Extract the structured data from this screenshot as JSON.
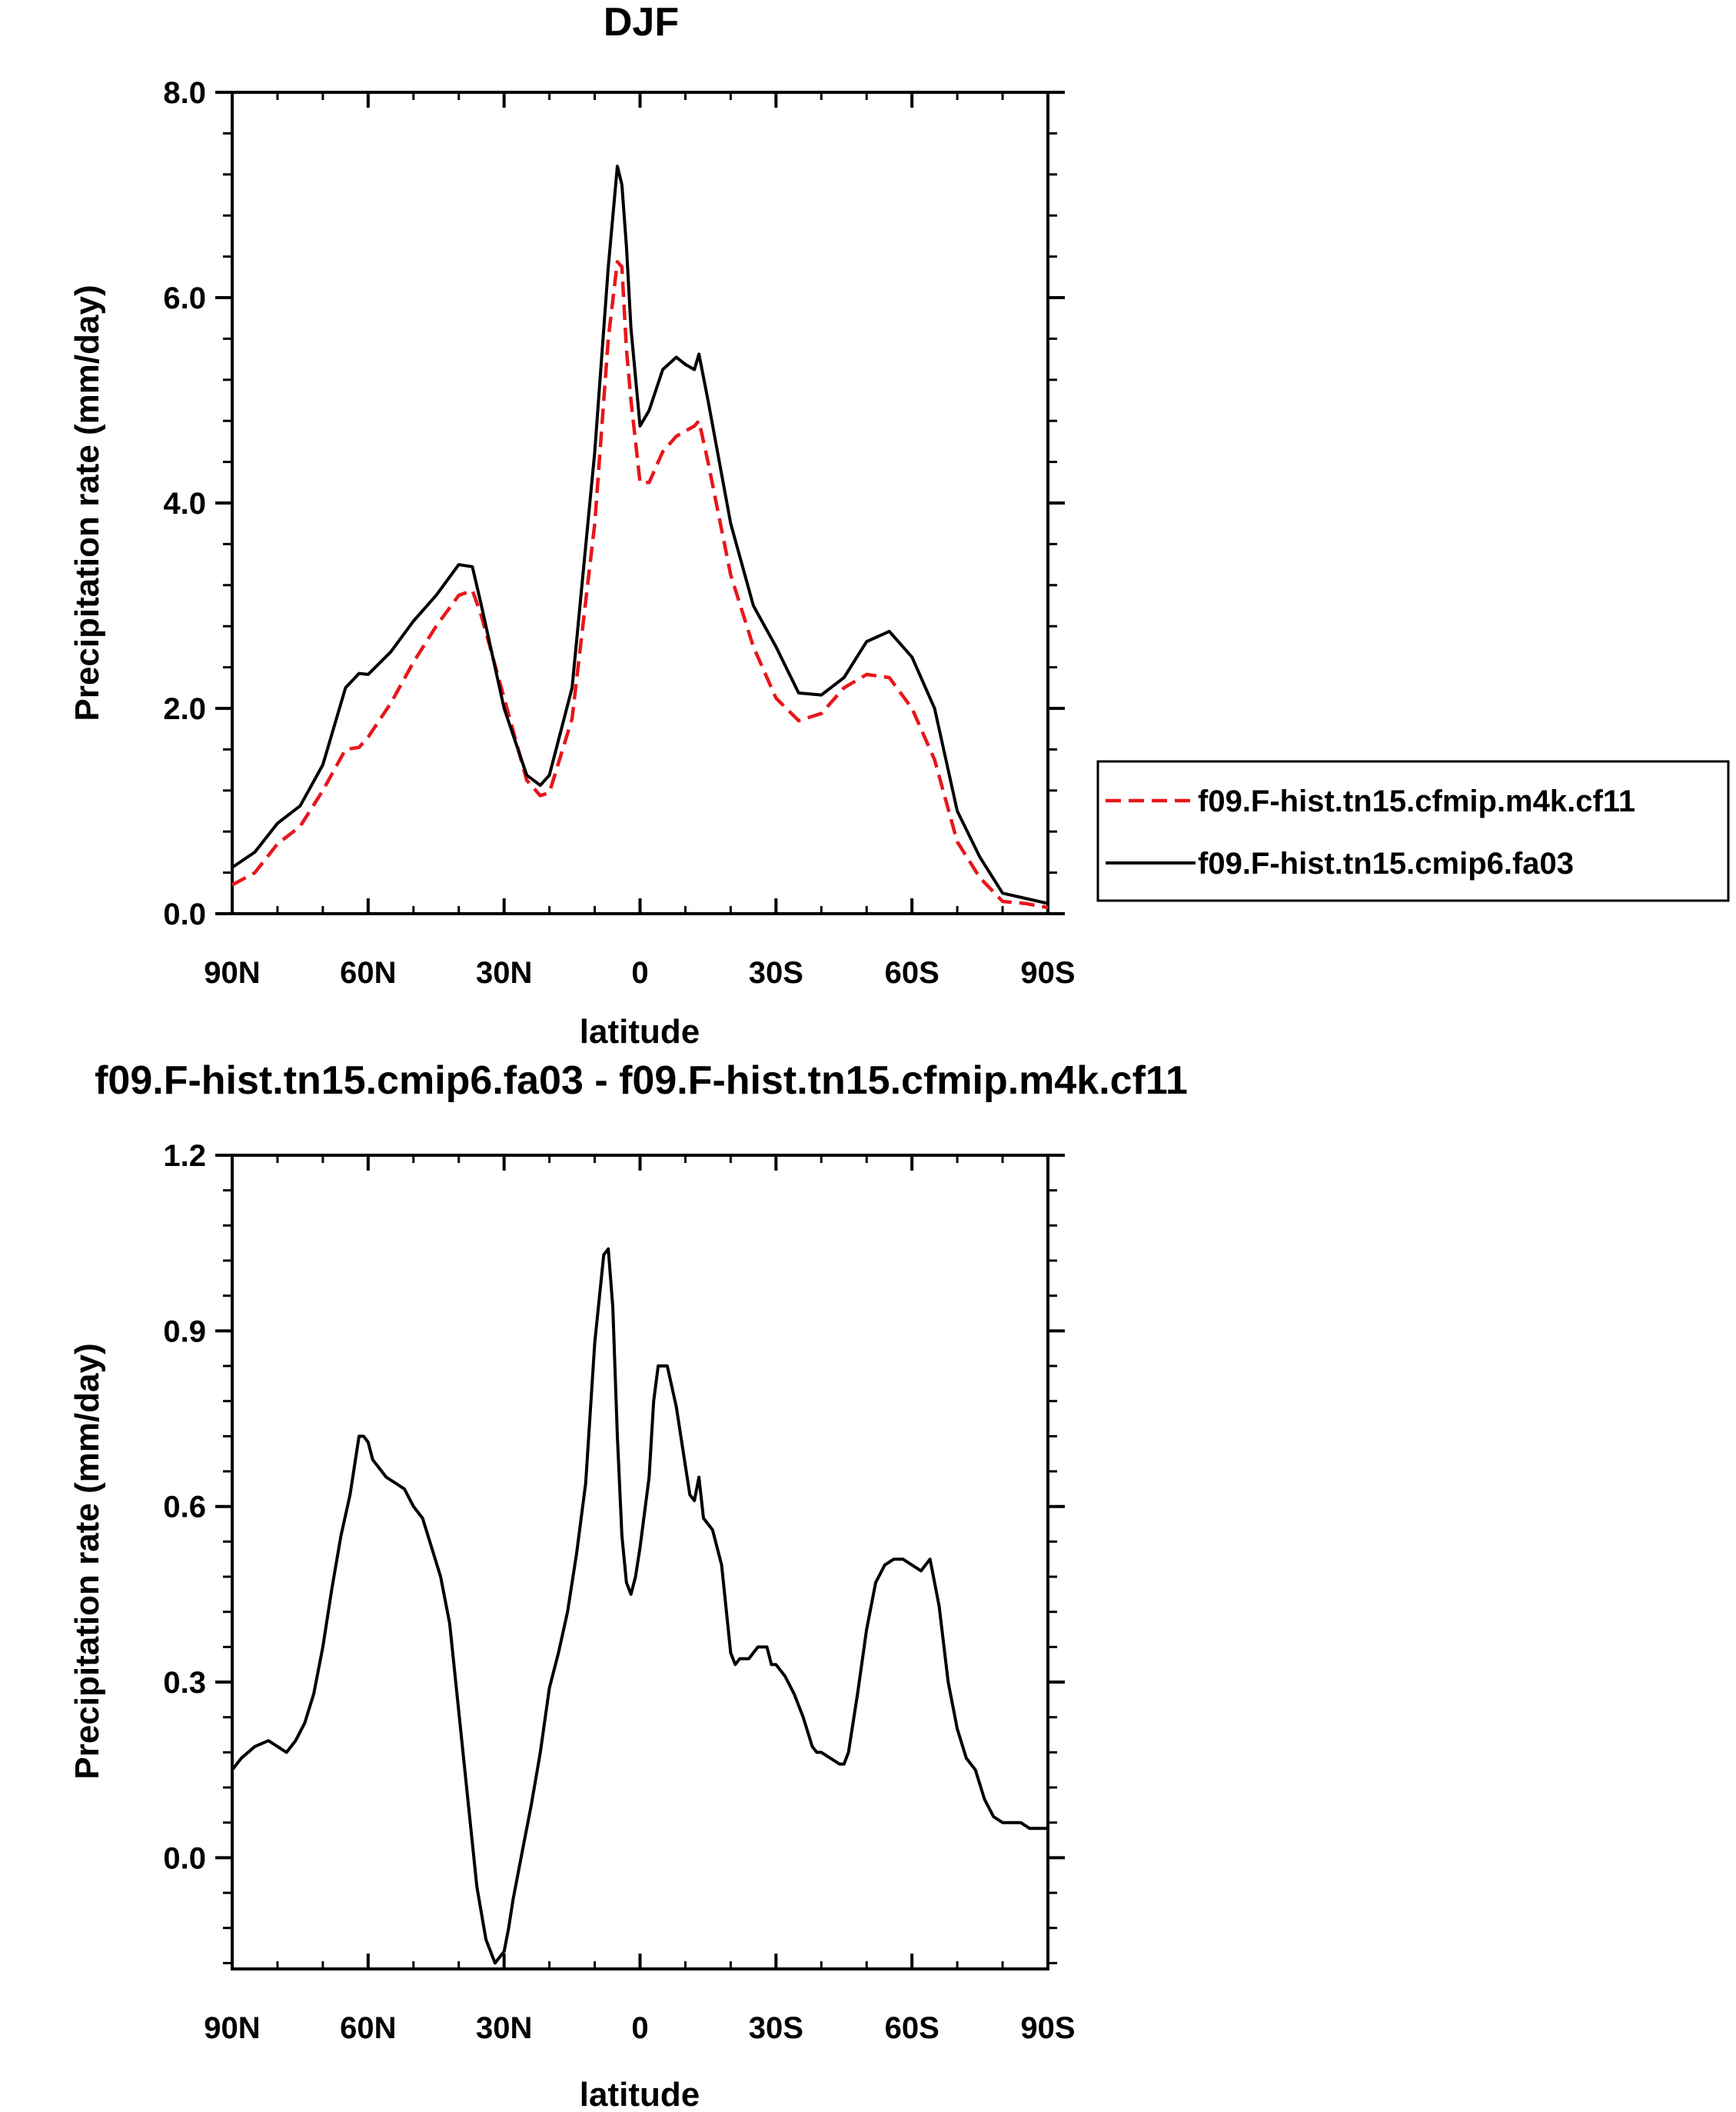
{
  "chart_data": [
    {
      "type": "line",
      "title": "DJF",
      "xlabel": "latitude",
      "ylabel": "Precipitation rate (mm/day)",
      "xlim": [
        -90,
        90
      ],
      "ylim": [
        0,
        8
      ],
      "x_ticks": [
        -90,
        -60,
        -30,
        0,
        30,
        60,
        90
      ],
      "x_tick_labels": [
        "90N",
        "60N",
        "30N",
        "0",
        "30S",
        "60S",
        "90S"
      ],
      "y_ticks": [
        0,
        2,
        4,
        6,
        8
      ],
      "y_tick_labels": [
        "0.0",
        "2.0",
        "4.0",
        "6.0",
        "8.0"
      ],
      "legend_position": "right",
      "x": [
        -90,
        -85,
        -80,
        -75,
        -70,
        -65,
        -62,
        -60,
        -55,
        -50,
        -45,
        -40,
        -37,
        -35,
        -30,
        -25,
        -22,
        -20,
        -15,
        -10,
        -7,
        -5,
        -4,
        -3,
        -2,
        0,
        2,
        5,
        8,
        10,
        12,
        13,
        15,
        20,
        25,
        30,
        35,
        40,
        45,
        50,
        55,
        60,
        65,
        70,
        75,
        80,
        85,
        90
      ],
      "series": [
        {
          "name": "f09.F-hist.tn15.cfmip.m4k.cf11",
          "color": "#e8161b",
          "dash": "dashed",
          "values": [
            0.28,
            0.4,
            0.68,
            0.85,
            1.2,
            1.6,
            1.62,
            1.72,
            2.05,
            2.45,
            2.8,
            3.1,
            3.15,
            2.9,
            2.1,
            1.3,
            1.15,
            1.18,
            1.9,
            3.8,
            5.6,
            6.35,
            6.3,
            5.5,
            5.0,
            4.2,
            4.2,
            4.5,
            4.65,
            4.7,
            4.75,
            4.8,
            4.4,
            3.3,
            2.6,
            2.1,
            1.88,
            1.95,
            2.2,
            2.33,
            2.3,
            2.0,
            1.5,
            0.7,
            0.35,
            0.12,
            0.1,
            0.06
          ]
        },
        {
          "name": "f09.F-hist.tn15.cmip6.fa03",
          "color": "#000000",
          "dash": "solid",
          "values": [
            0.45,
            0.6,
            0.88,
            1.05,
            1.45,
            2.2,
            2.34,
            2.33,
            2.55,
            2.85,
            3.1,
            3.4,
            3.38,
            3.0,
            2.0,
            1.35,
            1.25,
            1.35,
            2.2,
            4.5,
            6.3,
            7.28,
            7.1,
            6.5,
            5.7,
            4.75,
            4.9,
            5.3,
            5.42,
            5.35,
            5.3,
            5.45,
            5.0,
            3.8,
            3.0,
            2.6,
            2.15,
            2.13,
            2.3,
            2.65,
            2.75,
            2.5,
            2.0,
            1.0,
            0.55,
            0.2,
            0.15,
            0.1
          ]
        }
      ]
    },
    {
      "type": "line",
      "title": "f09.F-hist.tn15.cmip6.fa03 - f09.F-hist.tn15.cfmip.m4k.cf11",
      "xlabel": "latitude",
      "ylabel": "Precipitation rate (mm/day)",
      "xlim": [
        -90,
        90
      ],
      "ylim": [
        -0.19,
        1.2
      ],
      "x_ticks": [
        -90,
        -60,
        -30,
        0,
        30,
        60,
        90
      ],
      "x_tick_labels": [
        "90N",
        "60N",
        "30N",
        "0",
        "30S",
        "60S",
        "90S"
      ],
      "y_ticks": [
        0,
        0.3,
        0.6,
        0.9,
        1.2
      ],
      "y_tick_labels": [
        "0.0",
        "0.3",
        "0.6",
        "0.9",
        "1.2"
      ],
      "x": [
        -90,
        -88,
        -85,
        -82,
        -80,
        -78,
        -76,
        -74,
        -72,
        -70,
        -68,
        -66,
        -64,
        -62,
        -61,
        -60,
        -59,
        -58,
        -56,
        -54,
        -52,
        -50,
        -48,
        -46,
        -44,
        -42,
        -40,
        -38,
        -36,
        -34,
        -32,
        -31,
        -30,
        -29,
        -28,
        -26,
        -24,
        -22,
        -20,
        -18,
        -16,
        -14,
        -12,
        -10,
        -8,
        -7,
        -6,
        -5,
        -4,
        -3,
        -2,
        -1,
        0,
        2,
        3,
        4,
        6,
        8,
        10,
        11,
        12,
        13,
        14,
        15,
        16,
        18,
        20,
        21,
        22,
        24,
        26,
        28,
        29,
        30,
        32,
        34,
        36,
        38,
        39,
        40,
        42,
        44,
        45,
        46,
        48,
        50,
        52,
        54,
        56,
        58,
        60,
        62,
        63,
        64,
        66,
        68,
        70,
        72,
        74,
        76,
        78,
        80,
        82,
        84,
        86,
        88,
        90
      ],
      "series": [
        {
          "name": "",
          "color": "#000000",
          "dash": "solid",
          "values": [
            0.15,
            0.17,
            0.19,
            0.2,
            0.19,
            0.18,
            0.2,
            0.23,
            0.28,
            0.36,
            0.46,
            0.55,
            0.62,
            0.72,
            0.72,
            0.71,
            0.68,
            0.67,
            0.65,
            0.64,
            0.63,
            0.6,
            0.58,
            0.53,
            0.48,
            0.4,
            0.25,
            0.1,
            -0.05,
            -0.14,
            -0.18,
            -0.17,
            -0.16,
            -0.12,
            -0.07,
            0.01,
            0.09,
            0.18,
            0.29,
            0.35,
            0.42,
            0.52,
            0.64,
            0.88,
            1.03,
            1.04,
            0.94,
            0.72,
            0.55,
            0.47,
            0.45,
            0.48,
            0.53,
            0.65,
            0.78,
            0.84,
            0.84,
            0.77,
            0.67,
            0.62,
            0.61,
            0.65,
            0.58,
            0.57,
            0.56,
            0.5,
            0.35,
            0.33,
            0.34,
            0.34,
            0.36,
            0.36,
            0.33,
            0.33,
            0.31,
            0.28,
            0.24,
            0.19,
            0.18,
            0.18,
            0.17,
            0.16,
            0.16,
            0.18,
            0.28,
            0.39,
            0.47,
            0.5,
            0.51,
            0.51,
            0.5,
            0.49,
            0.5,
            0.51,
            0.43,
            0.3,
            0.22,
            0.17,
            0.15,
            0.1,
            0.07,
            0.06,
            0.06,
            0.06,
            0.05,
            0.05,
            0.05
          ]
        }
      ]
    }
  ]
}
